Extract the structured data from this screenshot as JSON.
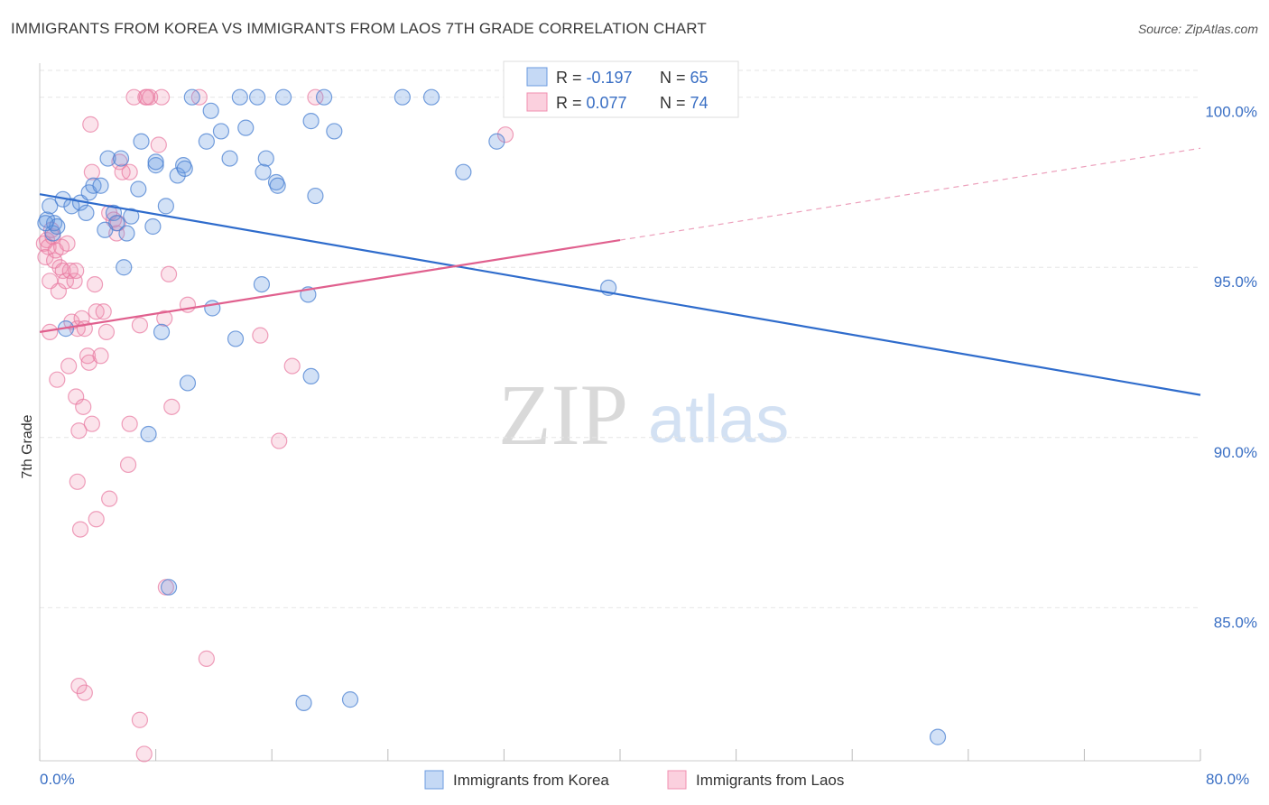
{
  "title": "IMMIGRANTS FROM KOREA VS IMMIGRANTS FROM LAOS 7TH GRADE CORRELATION CHART",
  "source": "Source: ZipAtlas.com",
  "watermark": {
    "zip": "ZIP",
    "atlas": "atlas"
  },
  "legend": {
    "korea": {
      "r_label": "R = ",
      "r_value": "-0.197",
      "n_label": "N = ",
      "n_value": "65"
    },
    "laos": {
      "r_label": "R = ",
      "r_value": "0.077",
      "n_label": "N = ",
      "n_value": "74"
    }
  },
  "colors": {
    "korea": "#6b9be0",
    "laos": "#f08fb0",
    "korea_line": "#2f6ccc",
    "laos_line": "#e0608e",
    "accent": "#3a6fc4"
  },
  "chart_data": {
    "type": "scatter",
    "title": "IMMIGRANTS FROM KOREA VS IMMIGRANTS FROM LAOS 7TH GRADE CORRELATION CHART",
    "ylabel": "7th Grade",
    "xlim": [
      0,
      80
    ],
    "ylim": [
      80.5,
      101.0
    ],
    "x_tick_labels": [
      "0.0%",
      "80.0%"
    ],
    "y_ticks": [
      100,
      95,
      90,
      85
    ],
    "y_tick_labels": [
      "100.0%",
      "95.0%",
      "90.0%",
      "85.0%"
    ],
    "series": [
      {
        "name": "Immigrants from Korea",
        "trend": {
          "x": [
            0,
            80
          ],
          "y": [
            97.15,
            91.25
          ],
          "dashed_to": null
        },
        "points": [
          [
            0.5,
            96.4
          ],
          [
            0.7,
            96.8
          ],
          [
            0.9,
            96.0
          ],
          [
            1.0,
            96.3
          ],
          [
            1.2,
            96.2
          ],
          [
            1.6,
            97.0
          ],
          [
            2.2,
            96.8
          ],
          [
            2.8,
            96.9
          ],
          [
            3.2,
            96.6
          ],
          [
            3.4,
            97.2
          ],
          [
            3.7,
            97.4
          ],
          [
            4.2,
            97.4
          ],
          [
            4.5,
            96.1
          ],
          [
            4.7,
            98.2
          ],
          [
            5.1,
            96.6
          ],
          [
            5.3,
            96.3
          ],
          [
            5.6,
            98.2
          ],
          [
            6.3,
            96.5
          ],
          [
            6.8,
            97.3
          ],
          [
            7.0,
            98.7
          ],
          [
            7.8,
            96.2
          ],
          [
            8.0,
            98.0
          ],
          [
            8.7,
            96.8
          ],
          [
            9.5,
            97.7
          ],
          [
            9.9,
            98.0
          ],
          [
            10.0,
            97.9
          ],
          [
            10.5,
            100.0
          ],
          [
            11.5,
            98.7
          ],
          [
            11.8,
            99.6
          ],
          [
            12.5,
            99.0
          ],
          [
            13.1,
            98.2
          ],
          [
            13.8,
            100.0
          ],
          [
            14.2,
            99.1
          ],
          [
            15.0,
            100.0
          ],
          [
            15.4,
            97.8
          ],
          [
            15.6,
            98.2
          ],
          [
            16.3,
            97.5
          ],
          [
            16.4,
            97.4
          ],
          [
            16.8,
            100.0
          ],
          [
            18.7,
            99.3
          ],
          [
            19.0,
            97.1
          ],
          [
            19.6,
            100.0
          ],
          [
            20.3,
            99.0
          ],
          [
            25.0,
            100.0
          ],
          [
            27.0,
            100.0
          ],
          [
            29.2,
            97.8
          ],
          [
            31.5,
            98.7
          ],
          [
            1.8,
            93.2
          ],
          [
            5.8,
            95.0
          ],
          [
            8.4,
            93.1
          ],
          [
            10.2,
            91.6
          ],
          [
            11.9,
            93.8
          ],
          [
            13.5,
            92.9
          ],
          [
            15.3,
            94.5
          ],
          [
            18.5,
            94.2
          ],
          [
            18.7,
            91.8
          ],
          [
            7.5,
            90.1
          ],
          [
            8.9,
            85.6
          ],
          [
            18.2,
            82.2
          ],
          [
            21.4,
            82.3
          ],
          [
            39.2,
            94.4
          ],
          [
            61.9,
            81.2
          ],
          [
            0.4,
            96.3
          ],
          [
            6.0,
            96.0
          ],
          [
            8.0,
            98.1
          ]
        ]
      },
      {
        "name": "Immigrants from Laos",
        "trend": {
          "x": [
            0,
            40
          ],
          "y": [
            93.1,
            95.8
          ],
          "dashed_to": {
            "x": 80,
            "y": 98.5
          }
        },
        "points": [
          [
            0.3,
            95.7
          ],
          [
            0.4,
            95.3
          ],
          [
            0.5,
            95.8
          ],
          [
            0.6,
            95.6
          ],
          [
            0.7,
            94.6
          ],
          [
            0.9,
            95.9
          ],
          [
            1.0,
            95.2
          ],
          [
            1.1,
            95.5
          ],
          [
            1.3,
            94.3
          ],
          [
            1.4,
            95.0
          ],
          [
            1.5,
            95.6
          ],
          [
            1.6,
            94.9
          ],
          [
            1.8,
            94.6
          ],
          [
            2.1,
            94.9
          ],
          [
            2.2,
            93.4
          ],
          [
            2.4,
            94.6
          ],
          [
            2.5,
            94.9
          ],
          [
            2.6,
            93.2
          ],
          [
            2.9,
            93.5
          ],
          [
            3.1,
            93.2
          ],
          [
            3.3,
            92.4
          ],
          [
            3.4,
            92.2
          ],
          [
            3.5,
            99.2
          ],
          [
            3.6,
            97.8
          ],
          [
            3.8,
            94.5
          ],
          [
            3.9,
            93.7
          ],
          [
            4.2,
            92.4
          ],
          [
            4.4,
            93.7
          ],
          [
            4.6,
            93.1
          ],
          [
            4.8,
            96.6
          ],
          [
            5.1,
            96.4
          ],
          [
            5.3,
            96.0
          ],
          [
            5.5,
            98.1
          ],
          [
            5.7,
            97.8
          ],
          [
            6.2,
            97.8
          ],
          [
            6.5,
            100.0
          ],
          [
            7.3,
            100.0
          ],
          [
            7.4,
            100.0
          ],
          [
            7.6,
            100.0
          ],
          [
            8.2,
            98.6
          ],
          [
            8.4,
            100.0
          ],
          [
            8.6,
            93.5
          ],
          [
            8.9,
            94.8
          ],
          [
            9.1,
            90.9
          ],
          [
            10.2,
            93.9
          ],
          [
            11.0,
            100.0
          ],
          [
            0.7,
            93.1
          ],
          [
            1.2,
            91.7
          ],
          [
            2.0,
            92.1
          ],
          [
            2.5,
            91.2
          ],
          [
            2.7,
            90.2
          ],
          [
            3.0,
            90.9
          ],
          [
            3.6,
            90.4
          ],
          [
            2.6,
            88.7
          ],
          [
            2.8,
            87.3
          ],
          [
            3.9,
            87.6
          ],
          [
            4.8,
            88.2
          ],
          [
            6.1,
            89.2
          ],
          [
            6.2,
            90.4
          ],
          [
            8.7,
            85.6
          ],
          [
            11.5,
            83.5
          ],
          [
            2.7,
            82.7
          ],
          [
            3.1,
            82.5
          ],
          [
            6.9,
            81.7
          ],
          [
            7.2,
            80.7
          ],
          [
            15.2,
            93.0
          ],
          [
            16.5,
            89.9
          ],
          [
            17.4,
            92.1
          ],
          [
            19.0,
            100.0
          ],
          [
            32.1,
            98.9
          ],
          [
            5.4,
            96.3
          ],
          [
            1.9,
            95.7
          ],
          [
            0.8,
            96.1
          ],
          [
            6.9,
            93.3
          ]
        ]
      }
    ]
  },
  "bottom_legend": {
    "korea": "Immigrants from Korea",
    "laos": "Immigrants from Laos"
  }
}
